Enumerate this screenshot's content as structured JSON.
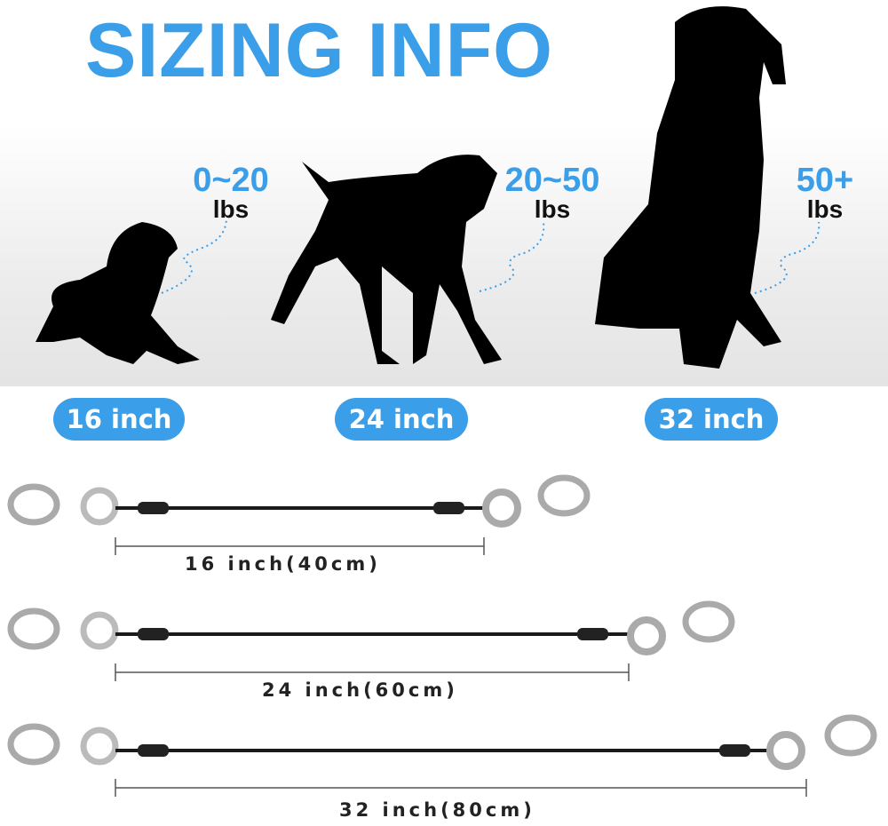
{
  "title": "SIZING INFO",
  "sizes": [
    {
      "weight": "0~20",
      "unit": "lbs",
      "length": "16 inch",
      "measure": "16 inch(40cm)"
    },
    {
      "weight": "20~50",
      "unit": "lbs",
      "length": "24 inch",
      "measure": "24 inch(60cm)"
    },
    {
      "weight": "50+",
      "unit": "lbs",
      "length": "32 inch",
      "measure": "32 inch(80cm)"
    }
  ],
  "colors": {
    "accent": "#3a9ee8",
    "silhouette": "#000000",
    "cable": "#1a1a1a",
    "metal": "#b8b8b8"
  }
}
